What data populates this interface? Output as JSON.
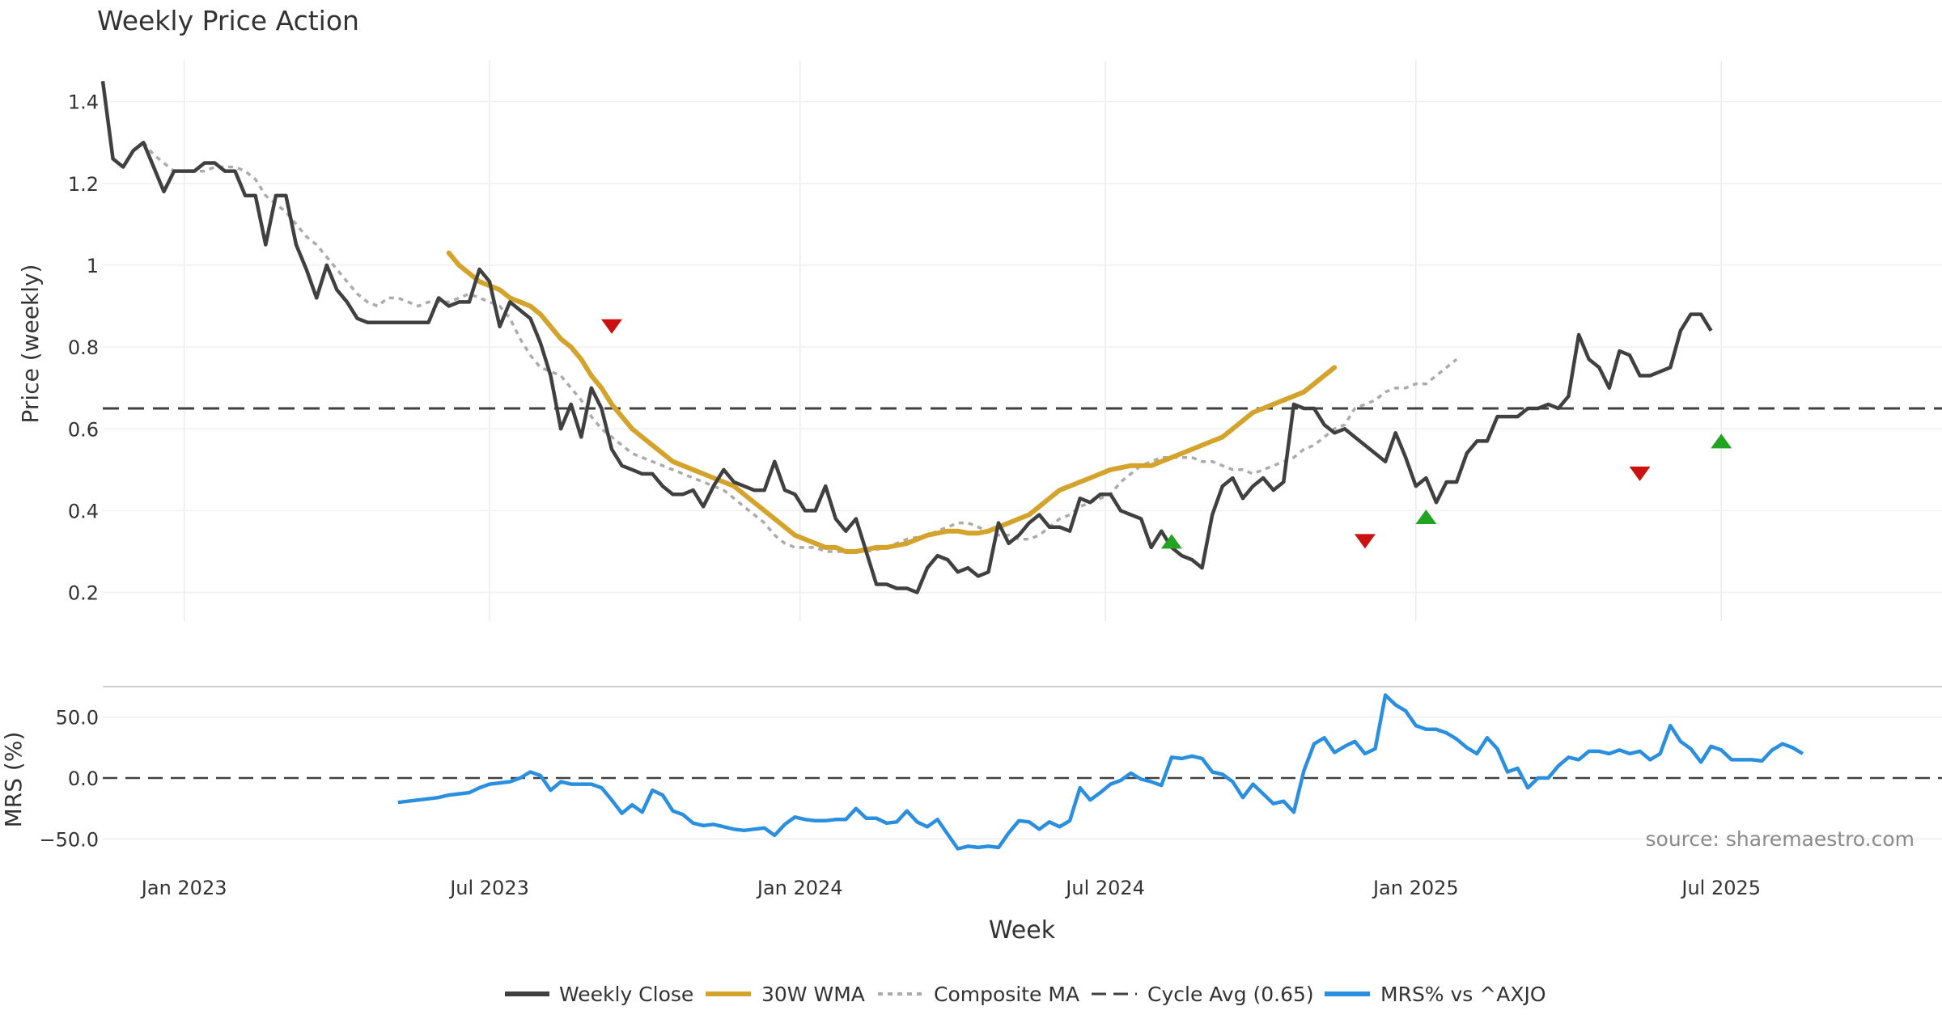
{
  "chart_data": {
    "type": "line",
    "title": "Weekly Price Action",
    "xlabel": "Week",
    "source_note": "source: sharemaestro.com",
    "x_ticks": [
      "Jan 2023",
      "Jul 2023",
      "Jan 2024",
      "Jul 2024",
      "Jan 2025",
      "Jul 2025"
    ],
    "x_tick_weeks": [
      8,
      38,
      68.5,
      98.5,
      129,
      159
    ],
    "price_panel": {
      "ylabel": "Price (weekly)",
      "ylim": [
        0.13,
        1.5
      ],
      "yticks": [
        0.2,
        0.4,
        0.6,
        0.8,
        1.0
      ],
      "ytick_labels": [
        "0.2",
        "0.4",
        "0.6",
        "0.8",
        "1"
      ],
      "series": [
        {
          "name": "Weekly Close",
          "color": "#404040",
          "start_week": 0,
          "values": [
            1.45,
            1.26,
            1.24,
            1.28,
            1.3,
            1.24,
            1.18,
            1.23,
            1.23,
            1.23,
            1.25,
            1.25,
            1.23,
            1.23,
            1.17,
            1.17,
            1.05,
            1.17,
            1.17,
            1.05,
            0.99,
            0.92,
            1.0,
            0.94,
            0.91,
            0.87,
            0.86,
            0.86,
            0.86,
            0.86,
            0.86,
            0.86,
            0.86,
            0.92,
            0.9,
            0.91,
            0.91,
            0.99,
            0.96,
            0.85,
            0.91,
            0.89,
            0.87,
            0.81,
            0.73,
            0.6,
            0.66,
            0.58,
            0.7,
            0.65,
            0.55,
            0.51,
            0.5,
            0.49,
            0.49,
            0.46,
            0.44,
            0.44,
            0.45,
            0.41,
            0.46,
            0.5,
            0.47,
            0.46,
            0.45,
            0.45,
            0.52,
            0.45,
            0.44,
            0.4,
            0.4,
            0.46,
            0.38,
            0.35,
            0.38,
            0.3,
            0.22,
            0.22,
            0.21,
            0.21,
            0.2,
            0.26,
            0.29,
            0.28,
            0.25,
            0.26,
            0.24,
            0.25,
            0.37,
            0.32,
            0.34,
            0.37,
            0.39,
            0.36,
            0.36,
            0.35,
            0.43,
            0.42,
            0.44,
            0.44,
            0.4,
            0.39,
            0.38,
            0.31,
            0.35,
            0.31,
            0.29,
            0.28,
            0.26,
            0.39,
            0.46,
            0.48,
            0.43,
            0.46,
            0.48,
            0.45,
            0.47,
            0.66,
            0.65,
            0.65,
            0.61,
            0.59,
            0.6,
            0.58,
            0.56,
            0.54,
            0.52,
            0.59,
            0.53,
            0.46,
            0.48,
            0.42,
            0.47,
            0.47,
            0.54,
            0.57,
            0.57,
            0.63,
            0.63,
            0.63,
            0.65,
            0.65,
            0.66,
            0.65,
            0.68,
            0.83,
            0.77,
            0.75,
            0.7,
            0.79,
            0.78,
            0.73,
            0.73,
            0.74,
            0.75,
            0.84,
            0.88,
            0.88,
            0.84
          ]
        },
        {
          "name": "30W WMA",
          "color": "#d4a32c",
          "start_week": 34,
          "values": [
            1.03,
            1.0,
            0.98,
            0.96,
            0.95,
            0.94,
            0.92,
            0.91,
            0.9,
            0.88,
            0.85,
            0.82,
            0.8,
            0.77,
            0.73,
            0.7,
            0.66,
            0.63,
            0.6,
            0.58,
            0.56,
            0.54,
            0.52,
            0.51,
            0.5,
            0.49,
            0.48,
            0.47,
            0.46,
            0.44,
            0.42,
            0.4,
            0.38,
            0.36,
            0.34,
            0.33,
            0.32,
            0.31,
            0.31,
            0.3,
            0.3,
            0.305,
            0.31,
            0.31,
            0.315,
            0.32,
            0.33,
            0.34,
            0.345,
            0.35,
            0.35,
            0.345,
            0.345,
            0.35,
            0.36,
            0.37,
            0.38,
            0.39,
            0.41,
            0.43,
            0.45,
            0.46,
            0.47,
            0.48,
            0.49,
            0.5,
            0.505,
            0.51,
            0.51,
            0.51,
            0.52,
            0.53,
            0.54,
            0.55,
            0.56,
            0.57,
            0.58,
            0.6,
            0.62,
            0.64,
            0.65,
            0.66,
            0.67,
            0.68,
            0.69,
            0.71,
            0.73,
            0.75
          ]
        },
        {
          "name": "Composite MA",
          "color": "#ababab",
          "start_week": 4,
          "values": [
            1.3,
            1.27,
            1.25,
            1.23,
            1.23,
            1.23,
            1.23,
            1.24,
            1.24,
            1.24,
            1.23,
            1.21,
            1.17,
            1.15,
            1.13,
            1.1,
            1.07,
            1.05,
            1.02,
            0.99,
            0.96,
            0.93,
            0.91,
            0.9,
            0.92,
            0.92,
            0.91,
            0.9,
            0.91,
            0.91,
            0.91,
            0.92,
            0.93,
            0.92,
            0.91,
            0.9,
            0.87,
            0.82,
            0.78,
            0.75,
            0.74,
            0.73,
            0.7,
            0.67,
            0.63,
            0.6,
            0.58,
            0.56,
            0.54,
            0.53,
            0.52,
            0.51,
            0.5,
            0.49,
            0.48,
            0.47,
            0.46,
            0.45,
            0.43,
            0.41,
            0.39,
            0.37,
            0.34,
            0.32,
            0.31,
            0.31,
            0.31,
            0.3,
            0.3,
            0.3,
            0.3,
            0.3,
            0.305,
            0.31,
            0.32,
            0.33,
            0.335,
            0.34,
            0.35,
            0.36,
            0.37,
            0.37,
            0.36,
            0.35,
            0.34,
            0.34,
            0.33,
            0.33,
            0.34,
            0.36,
            0.38,
            0.39,
            0.41,
            0.42,
            0.43,
            0.44,
            0.47,
            0.49,
            0.51,
            0.52,
            0.53,
            0.53,
            0.53,
            0.53,
            0.52,
            0.52,
            0.51,
            0.5,
            0.5,
            0.49,
            0.5,
            0.51,
            0.52,
            0.53,
            0.55,
            0.56,
            0.58,
            0.6,
            0.61,
            0.65,
            0.66,
            0.67,
            0.69,
            0.7,
            0.7,
            0.71,
            0.71,
            0.73,
            0.75,
            0.77
          ]
        },
        {
          "name": "Cycle Avg (0.65)",
          "color": "#404040",
          "value": 0.65
        }
      ],
      "signals": [
        {
          "type": "sell",
          "week": 50,
          "value": 0.85,
          "color": "#cc1111"
        },
        {
          "type": "buy",
          "week": 105,
          "value": 0.325,
          "color": "#22a322"
        },
        {
          "type": "sell",
          "week": 124,
          "value": 0.325,
          "color": "#cc1111"
        },
        {
          "type": "buy",
          "week": 130,
          "value": 0.385,
          "color": "#22a322"
        },
        {
          "type": "sell",
          "week": 151,
          "value": 0.49,
          "color": "#cc1111"
        },
        {
          "type": "buy",
          "week": 159,
          "value": 0.57,
          "color": "#22a322"
        }
      ]
    },
    "mrs_panel": {
      "ylabel": "MRS (%)",
      "ylim": [
        -65,
        75
      ],
      "yticks": [
        -50,
        0,
        50
      ],
      "ytick_labels": [
        "−50.0",
        "0.0",
        "50.0"
      ],
      "zero_line": 0,
      "series": {
        "name": "MRS% vs ^AXJO",
        "color": "#2b8fe0",
        "start_week": 29,
        "values": [
          -20,
          -19,
          -18,
          -17,
          -16,
          -14,
          -13,
          -12,
          -8,
          -5,
          -4,
          -3,
          0,
          5,
          2,
          -10,
          -3,
          -5,
          -5,
          -5,
          -8,
          -18,
          -29,
          -22,
          -28,
          -10,
          -14,
          -27,
          -30,
          -37,
          -39,
          -38,
          -40,
          -42,
          -43,
          -42,
          -41,
          -47,
          -38,
          -32,
          -34,
          -35,
          -35,
          -34,
          -34,
          -25,
          -33,
          -33,
          -37,
          -36,
          -27,
          -36,
          -40,
          -34,
          -46,
          -58,
          -56,
          -57,
          -56,
          -57,
          -45,
          -35,
          -36,
          -42,
          -36,
          -40,
          -35,
          -8,
          -18,
          -12,
          -5,
          -2,
          4,
          -1,
          -3,
          -6,
          17,
          16,
          18,
          16,
          5,
          3,
          -3,
          -16,
          -5,
          -13,
          -21,
          -19,
          -28,
          6,
          28,
          33,
          21,
          26,
          30,
          20,
          24,
          68,
          60,
          55,
          43,
          40,
          40,
          37,
          32,
          25,
          20,
          33,
          24,
          5,
          8,
          -8,
          0,
          0,
          10,
          17,
          15,
          22,
          22,
          20,
          23,
          20,
          22,
          15,
          20,
          43,
          30,
          24,
          13,
          26,
          23,
          15,
          15,
          15,
          14,
          23,
          28,
          25,
          20
        ]
      }
    },
    "legend": {
      "placement": "bottom-center",
      "entries": [
        "Weekly Close",
        "30W WMA",
        "Composite MA",
        "Cycle Avg (0.65)",
        "MRS% vs ^AXJO"
      ]
    }
  }
}
